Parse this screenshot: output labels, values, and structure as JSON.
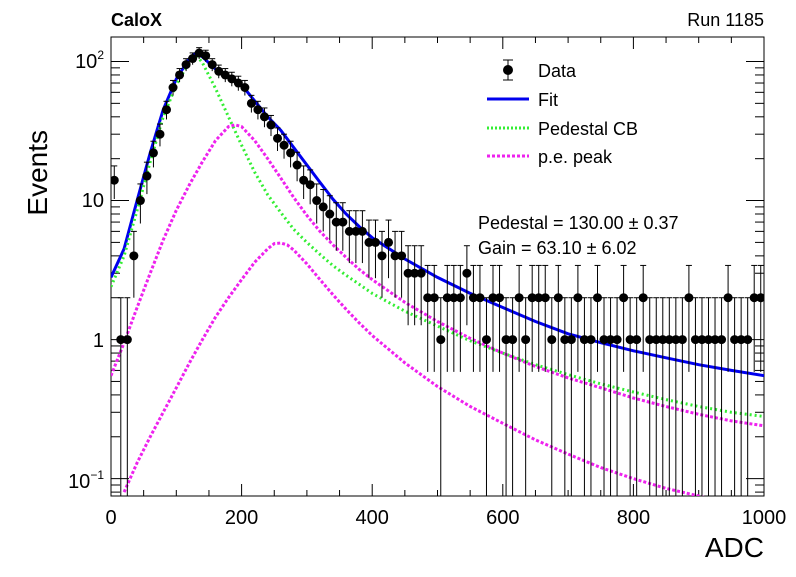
{
  "header": {
    "experiment": "CaloX",
    "run": "Run 1185"
  },
  "chart_data": {
    "type": "scatter",
    "title": "",
    "xlabel": "ADC",
    "ylabel": "Events",
    "xlim": [
      0,
      1000
    ],
    "ylim": [
      0.075,
      150
    ],
    "yscale": "log",
    "grid": false,
    "legend_position": "top-right",
    "x_ticks": [
      "0",
      "200",
      "400",
      "600",
      "800",
      "1000"
    ],
    "y_ticks": [
      {
        "base": "10",
        "exp": "−1"
      },
      {
        "base": "1",
        "exp": ""
      },
      {
        "base": "10",
        "exp": ""
      },
      {
        "base": "10",
        "exp": "2"
      }
    ],
    "legend": [
      {
        "label": "Data",
        "style": "marker",
        "color": "#000000"
      },
      {
        "label": "Fit",
        "style": "solid",
        "color": "#0000ee"
      },
      {
        "label": "Pedestal CB",
        "style": "dotted",
        "color": "#33ee33"
      },
      {
        "label": "p.e. peak",
        "style": "dotted",
        "color": "#ee22ee"
      }
    ],
    "annotations": [
      "Pedestal = 130.00 ± 0.37",
      "Gain = 63.10 ± 6.02"
    ],
    "series": [
      {
        "name": "Data",
        "x": [
          0,
          10,
          20,
          30,
          40,
          50,
          60,
          70,
          80,
          90,
          100,
          110,
          120,
          130,
          140,
          150,
          160,
          170,
          180,
          190,
          200,
          210,
          220,
          230,
          240,
          250,
          260,
          270,
          280,
          290,
          300,
          310,
          320,
          330,
          340,
          350,
          360,
          370,
          380,
          390,
          400,
          410,
          420,
          430,
          440,
          450,
          460,
          470,
          480,
          490,
          500,
          510,
          520,
          530,
          540,
          550,
          560,
          570,
          580,
          590,
          600,
          610,
          620,
          630,
          640,
          650,
          660,
          670,
          680,
          690,
          700,
          710,
          720,
          730,
          740,
          750,
          760,
          770,
          780,
          790,
          800,
          810,
          820,
          830,
          840,
          850,
          860,
          870,
          880,
          890,
          900,
          910,
          920,
          930,
          940,
          950,
          960,
          970,
          980,
          990
        ],
        "y": [
          14,
          1,
          1,
          4,
          10,
          15,
          22,
          30,
          45,
          65,
          80,
          95,
          105,
          115,
          110,
          95,
          85,
          80,
          75,
          70,
          65,
          50,
          45,
          40,
          35,
          28,
          25,
          22,
          18,
          14,
          13,
          10,
          9,
          8,
          7,
          7,
          6,
          6,
          6,
          5,
          5,
          4,
          5,
          4,
          4,
          3,
          3,
          3,
          2,
          2,
          1,
          2,
          2,
          2,
          3,
          2,
          2,
          1,
          2,
          2,
          1,
          1,
          2,
          1,
          2,
          2,
          2,
          1,
          2,
          1,
          1,
          2,
          1,
          1,
          2,
          1,
          1,
          1,
          2,
          1,
          1,
          2,
          1,
          1,
          1,
          1,
          1,
          1,
          2,
          1,
          1,
          1,
          1,
          1,
          2,
          1,
          1,
          1,
          2,
          2
        ]
      },
      {
        "name": "Fit",
        "x": [
          0,
          20,
          40,
          60,
          80,
          100,
          120,
          130,
          140,
          160,
          180,
          200,
          220,
          240,
          260,
          280,
          300,
          320,
          340,
          360,
          380,
          400,
          450,
          500,
          550,
          600,
          650,
          700,
          750,
          800,
          850,
          900,
          950,
          1000
        ],
        "y": [
          2.8,
          4.5,
          10,
          22,
          45,
          75,
          105,
          115,
          108,
          88,
          78,
          68,
          52,
          40,
          32,
          24,
          18,
          13.5,
          10.2,
          8,
          6.5,
          5.4,
          3.8,
          2.8,
          2.15,
          1.7,
          1.35,
          1.1,
          0.95,
          0.83,
          0.74,
          0.66,
          0.6,
          0.55
        ]
      },
      {
        "name": "Pedestal CB",
        "x": [
          0,
          20,
          40,
          60,
          80,
          100,
          120,
          130,
          140,
          160,
          180,
          200,
          220,
          240,
          260,
          280,
          300,
          320,
          340,
          360,
          380,
          400,
          450,
          500,
          550,
          600,
          650,
          700,
          750,
          800,
          850,
          900,
          950,
          1000
        ],
        "y": [
          2.4,
          4,
          8.5,
          19,
          40,
          68,
          100,
          112,
          98,
          64,
          40,
          25,
          16,
          11,
          8.2,
          6.2,
          5,
          4.1,
          3.4,
          2.9,
          2.5,
          2.15,
          1.6,
          1.25,
          0.98,
          0.8,
          0.66,
          0.56,
          0.48,
          0.42,
          0.37,
          0.33,
          0.3,
          0.28
        ]
      },
      {
        "name": "p.e. peak",
        "x": [
          0,
          20,
          40,
          60,
          80,
          100,
          120,
          140,
          160,
          180,
          190,
          200,
          220,
          240,
          260,
          280,
          300,
          320,
          340,
          360,
          380,
          400,
          450,
          500,
          550,
          600,
          650,
          700,
          750,
          800,
          850,
          900,
          950,
          1000
        ],
        "y": [
          0.55,
          0.95,
          1.7,
          3,
          5.2,
          8.5,
          13,
          19,
          27,
          34,
          35,
          34,
          27,
          20,
          14.5,
          10.5,
          7.8,
          6,
          4.8,
          3.9,
          3.2,
          2.7,
          1.85,
          1.35,
          1.02,
          0.8,
          0.64,
          0.53,
          0.45,
          0.38,
          0.33,
          0.29,
          0.26,
          0.24
        ]
      },
      {
        "name": "p.e. peak",
        "x": [
          20,
          40,
          60,
          80,
          100,
          120,
          140,
          160,
          180,
          200,
          220,
          240,
          250,
          260,
          270,
          280,
          300,
          320,
          340,
          360,
          380,
          400,
          450,
          500,
          550,
          600,
          650,
          700,
          750,
          800,
          850,
          900,
          950,
          1000
        ],
        "y": [
          0.08,
          0.13,
          0.2,
          0.3,
          0.45,
          0.68,
          1,
          1.45,
          2,
          2.7,
          3.6,
          4.5,
          4.9,
          4.95,
          4.8,
          4.4,
          3.5,
          2.7,
          2.1,
          1.65,
          1.32,
          1.07,
          0.68,
          0.46,
          0.33,
          0.25,
          0.19,
          0.15,
          0.12,
          0.1,
          0.085,
          0.075,
          0.065,
          0.057
        ]
      }
    ]
  }
}
